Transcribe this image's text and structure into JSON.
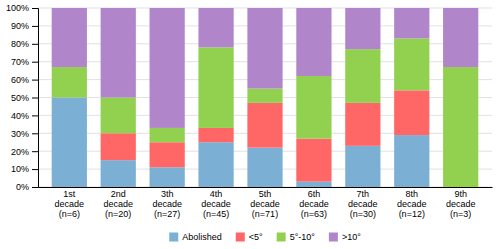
{
  "chart_data": {
    "type": "bar",
    "stacked": true,
    "categories": [
      "1st\ndecade\n(n=6)",
      "2nd\ndecade\n(n=20)",
      "3th\ndecade\n(n=27)",
      "4th\ndecade\n(n=45)",
      "5th\ndecade\n(n=71)",
      "6th\ndecade\n(n=63)",
      "7th\ndecade\n(n=30)",
      "8th\ndecade\n(n=12)",
      "9th\ndecade\n(n=3)"
    ],
    "series": [
      {
        "name": "Abolished",
        "color": "#7BAFD4",
        "values": [
          50,
          15,
          11,
          25,
          22,
          3,
          23,
          29,
          0
        ]
      },
      {
        "name": "<5°",
        "color": "#FF6666",
        "values": [
          0,
          15,
          14,
          8,
          25,
          24,
          24,
          25,
          0
        ]
      },
      {
        "name": "5°-10°",
        "color": "#92D050",
        "values": [
          17,
          20,
          8,
          45,
          8,
          35,
          30,
          29,
          67
        ]
      },
      {
        "name": ">10°",
        "color": "#B085C9",
        "values": [
          33,
          50,
          67,
          22,
          45,
          38,
          23,
          17,
          33
        ]
      }
    ],
    "ylim": [
      0,
      100
    ],
    "yticks": [
      {
        "value": 0,
        "label": "0%"
      },
      {
        "value": 10,
        "label": "10%"
      },
      {
        "value": 20,
        "label": "20%"
      },
      {
        "value": 30,
        "label": "30%"
      },
      {
        "value": 40,
        "label": "40%"
      },
      {
        "value": 50,
        "label": "50%"
      },
      {
        "value": 60,
        "label": "60%"
      },
      {
        "value": 70,
        "label": "70%"
      },
      {
        "value": 80,
        "label": "80%"
      },
      {
        "value": 90,
        "label": "90%"
      },
      {
        "value": 100,
        "label": "100%"
      }
    ],
    "grid": true,
    "legend": "bottom"
  }
}
